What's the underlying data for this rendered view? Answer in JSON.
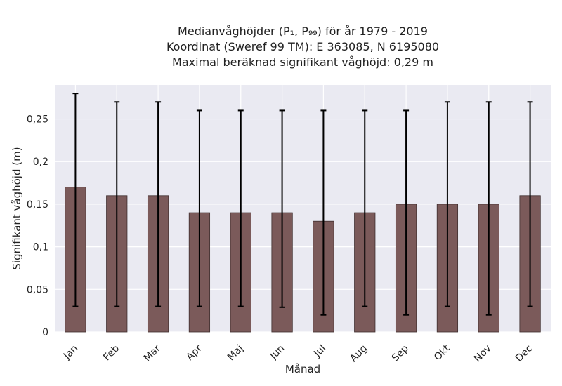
{
  "chart_data": {
    "type": "bar",
    "title_lines": [
      "Medianvåghöjder (P₁, P₉₉) för år 1979 - 2019",
      "Koordinat (Sweref 99 TM): E 363085, N 6195080",
      "Maximal beräknad signifikant våghöjd: 0,29 m"
    ],
    "xlabel": "Månad",
    "ylabel": "Signifikant våghöjd (m)",
    "categories": [
      "Jan",
      "Feb",
      "Mar",
      "Apr",
      "Maj",
      "Jun",
      "Jul",
      "Aug",
      "Sep",
      "Okt",
      "Nov",
      "Dec"
    ],
    "series": [
      {
        "values": [
          0.17,
          0.16,
          0.16,
          0.14,
          0.14,
          0.14,
          0.13,
          0.14,
          0.15,
          0.15,
          0.15,
          0.16
        ],
        "p1": [
          0.03,
          0.03,
          0.03,
          0.03,
          0.03,
          0.029,
          0.02,
          0.03,
          0.02,
          0.03,
          0.02,
          0.03
        ],
        "p99": [
          0.28,
          0.27,
          0.27,
          0.26,
          0.26,
          0.26,
          0.26,
          0.26,
          0.26,
          0.27,
          0.27,
          0.27
        ]
      }
    ],
    "ylim": [
      0,
      0.29
    ],
    "yticks": [
      0,
      0.05,
      0.1,
      0.15,
      0.2,
      0.25
    ],
    "ytick_labels": [
      "0",
      "0,05",
      "0,1",
      "0,15",
      "0,2",
      "0,25"
    ],
    "grid": true,
    "colors": {
      "bar": "#7b5a5a",
      "bar_edge": "#3f2e2e",
      "plot_bg": "#eaeaf2",
      "grid": "#ffffff",
      "errorbar": "#000000"
    }
  }
}
